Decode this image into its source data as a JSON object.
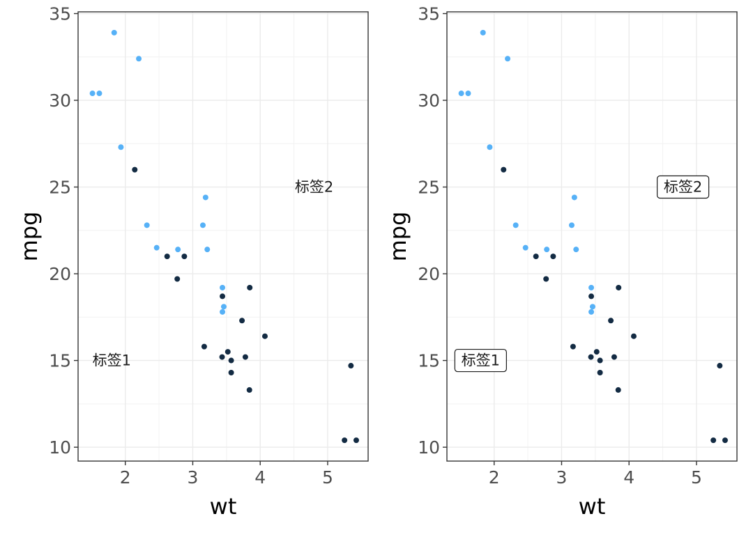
{
  "chart_data": [
    {
      "type": "scatter",
      "panel": "left",
      "xlabel": "wt",
      "ylabel": "mpg",
      "xlim": [
        1.3,
        5.6
      ],
      "ylim": [
        9.2,
        35.1
      ],
      "xticks": [
        2,
        3,
        4,
        5
      ],
      "yticks": [
        10,
        15,
        20,
        25,
        30,
        35
      ],
      "grid": true,
      "series": [
        {
          "name": "light",
          "color": "#56b1f7",
          "points": [
            [
              1.513,
              30.4
            ],
            [
              1.615,
              30.4
            ],
            [
              1.835,
              33.9
            ],
            [
              1.935,
              27.3
            ],
            [
              2.2,
              32.4
            ],
            [
              2.32,
              22.8
            ],
            [
              2.465,
              21.5
            ],
            [
              2.78,
              21.4
            ],
            [
              3.15,
              22.8
            ],
            [
              3.19,
              24.4
            ],
            [
              3.215,
              21.4
            ],
            [
              3.44,
              19.2
            ],
            [
              3.44,
              17.8
            ],
            [
              3.46,
              18.1
            ]
          ]
        },
        {
          "name": "dark",
          "color": "#132b43",
          "points": [
            [
              2.14,
              26.0
            ],
            [
              2.62,
              21.0
            ],
            [
              2.77,
              19.7
            ],
            [
              2.875,
              21.0
            ],
            [
              3.17,
              15.8
            ],
            [
              3.435,
              15.2
            ],
            [
              3.44,
              18.7
            ],
            [
              3.52,
              15.5
            ],
            [
              3.57,
              14.3
            ],
            [
              3.57,
              15.0
            ],
            [
              3.73,
              17.3
            ],
            [
              3.78,
              15.2
            ],
            [
              3.84,
              13.3
            ],
            [
              3.845,
              19.2
            ],
            [
              4.07,
              16.4
            ],
            [
              5.25,
              10.4
            ],
            [
              5.345,
              14.7
            ],
            [
              5.424,
              10.4
            ]
          ]
        }
      ],
      "annotations": [
        {
          "text": "标签1",
          "x": 1.8,
          "y": 15,
          "boxed": false
        },
        {
          "text": "标签2",
          "x": 4.8,
          "y": 25,
          "boxed": false
        }
      ]
    },
    {
      "type": "scatter",
      "panel": "right",
      "xlabel": "wt",
      "ylabel": "mpg",
      "xlim": [
        1.3,
        5.6
      ],
      "ylim": [
        9.2,
        35.1
      ],
      "xticks": [
        2,
        3,
        4,
        5
      ],
      "yticks": [
        10,
        15,
        20,
        25,
        30,
        35
      ],
      "grid": true,
      "series": [
        {
          "name": "light",
          "color": "#56b1f7",
          "points": [
            [
              1.513,
              30.4
            ],
            [
              1.615,
              30.4
            ],
            [
              1.835,
              33.9
            ],
            [
              1.935,
              27.3
            ],
            [
              2.2,
              32.4
            ],
            [
              2.32,
              22.8
            ],
            [
              2.465,
              21.5
            ],
            [
              2.78,
              21.4
            ],
            [
              3.15,
              22.8
            ],
            [
              3.19,
              24.4
            ],
            [
              3.215,
              21.4
            ],
            [
              3.44,
              19.2
            ],
            [
              3.44,
              17.8
            ],
            [
              3.46,
              18.1
            ]
          ]
        },
        {
          "name": "dark",
          "color": "#132b43",
          "points": [
            [
              2.14,
              26.0
            ],
            [
              2.62,
              21.0
            ],
            [
              2.77,
              19.7
            ],
            [
              2.875,
              21.0
            ],
            [
              3.17,
              15.8
            ],
            [
              3.435,
              15.2
            ],
            [
              3.44,
              18.7
            ],
            [
              3.52,
              15.5
            ],
            [
              3.57,
              14.3
            ],
            [
              3.57,
              15.0
            ],
            [
              3.73,
              17.3
            ],
            [
              3.78,
              15.2
            ],
            [
              3.84,
              13.3
            ],
            [
              3.845,
              19.2
            ],
            [
              4.07,
              16.4
            ],
            [
              5.25,
              10.4
            ],
            [
              5.345,
              14.7
            ],
            [
              5.424,
              10.4
            ]
          ]
        }
      ],
      "annotations": [
        {
          "text": "标签1",
          "x": 1.8,
          "y": 15,
          "boxed": true
        },
        {
          "text": "标签2",
          "x": 4.8,
          "y": 25,
          "boxed": true
        }
      ]
    }
  ]
}
